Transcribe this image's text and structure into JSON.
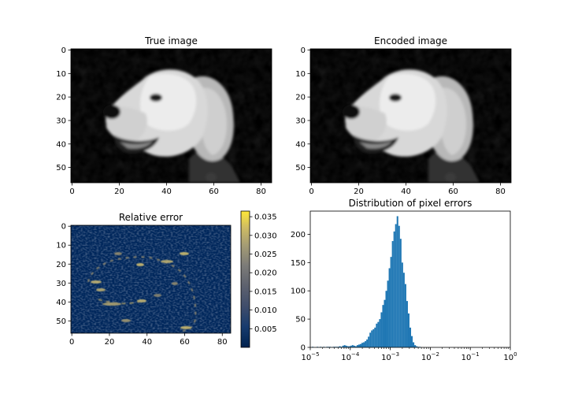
{
  "chart_data": [
    {
      "type": "image",
      "title": "True image",
      "x_ticks": [
        "0",
        "20",
        "40",
        "60",
        "80"
      ],
      "y_ticks": [
        "0",
        "10",
        "20",
        "30",
        "40",
        "50"
      ],
      "xlim": [
        -0.5,
        84.5
      ],
      "ylim": [
        56.5,
        -0.5
      ],
      "content": "grayscale photo of a dog",
      "cmap": "gray"
    },
    {
      "type": "image",
      "title": "Encoded image",
      "x_ticks": [
        "0",
        "20",
        "40",
        "60",
        "80"
      ],
      "y_ticks": [
        "0",
        "10",
        "20",
        "30",
        "40",
        "50"
      ],
      "xlim": [
        -0.5,
        84.5
      ],
      "ylim": [
        56.5,
        -0.5
      ],
      "content": "grayscale photo of a dog (reconstruction)",
      "cmap": "gray"
    },
    {
      "type": "heatmap",
      "title": "Relative error",
      "x_ticks": [
        "0",
        "20",
        "40",
        "60",
        "80"
      ],
      "y_ticks": [
        "0",
        "10",
        "20",
        "30",
        "40",
        "50"
      ],
      "xlim": [
        -0.5,
        84.5
      ],
      "ylim": [
        56.5,
        -0.5
      ],
      "cmap": "cividis",
      "colorbar": {
        "ticks": [
          "0.005",
          "0.010",
          "0.015",
          "0.020",
          "0.025",
          "0.030",
          "0.035"
        ],
        "tick_values": [
          0.005,
          0.01,
          0.015,
          0.02,
          0.025,
          0.03,
          0.035
        ],
        "range": [
          0.0,
          0.0365
        ]
      }
    },
    {
      "type": "histogram",
      "title": "Distribution of pixel errors",
      "x_scale": "log",
      "xlim_exponent": [
        -5,
        0
      ],
      "x_tick_labels": [
        {
          "base": "10",
          "exp": "−5"
        },
        {
          "base": "10",
          "exp": "−4"
        },
        {
          "base": "10",
          "exp": "−3"
        },
        {
          "base": "10",
          "exp": "−2"
        },
        {
          "base": "10",
          "exp": "−1"
        },
        {
          "base": "10",
          "exp": "0"
        }
      ],
      "y_ticks": [
        "0",
        "50",
        "100",
        "150",
        "200"
      ],
      "y_tick_values": [
        0,
        50,
        100,
        150,
        200
      ],
      "ylim": [
        0,
        241
      ],
      "bar_color": "#1f77b4",
      "bin_start_exponent": -5,
      "bin_width_exponent": 0.04,
      "counts": [
        0,
        1,
        0,
        0,
        1,
        0,
        1,
        0,
        1,
        0,
        1,
        1,
        1,
        0,
        1,
        1,
        1,
        1,
        2,
        1,
        3,
        4,
        3,
        2,
        2,
        3,
        4,
        3,
        2,
        4,
        5,
        6,
        8,
        9,
        11,
        14,
        19,
        26,
        30,
        32,
        35,
        42,
        45,
        50,
        62,
        75,
        84,
        100,
        118,
        140,
        160,
        188,
        205,
        218,
        232,
        215,
        192,
        150,
        132,
        112,
        82,
        60,
        35,
        20,
        9,
        4,
        2,
        1,
        1,
        0,
        0,
        0,
        0,
        0,
        0,
        0,
        0,
        0,
        0,
        0,
        0,
        0,
        0,
        0,
        0,
        0,
        0,
        0,
        0,
        0,
        0,
        0,
        0,
        0,
        0,
        0,
        0,
        0,
        0,
        0,
        0,
        0,
        0,
        0,
        0,
        0,
        0,
        0,
        0,
        0,
        0,
        0,
        0,
        0,
        0,
        0,
        0,
        0,
        0,
        0,
        0,
        0,
        0,
        0,
        0
      ]
    }
  ]
}
